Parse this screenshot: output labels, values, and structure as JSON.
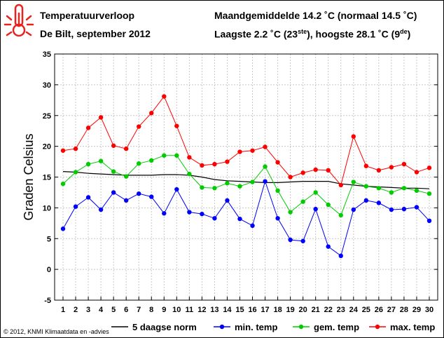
{
  "header": {
    "title": "Temperatuurverloop",
    "subtitle": "De Bilt, september 2012",
    "monthly_avg": "Maandgemiddelde 14.2 ˚C (normaal 14.5 ˚C)",
    "minmax_main": "Laagste 2.2 ˚C (23",
    "min_sup": "ste",
    "minmax_mid": "), hoogste 28.1 ˚C (9",
    "max_sup": "de",
    "minmax_end": ")"
  },
  "footer": {
    "copyright": "© 2012, KNMI Klimaatdata en -advies"
  },
  "icon": {
    "name": "thermometer-icon",
    "color": "#e8231e"
  },
  "chart_data": {
    "type": "line",
    "ylabel": "Graden Celsius",
    "xlabel": "",
    "ylim": [
      -5,
      35
    ],
    "yticks": [
      -5,
      0,
      5,
      10,
      15,
      20,
      25,
      30,
      35
    ],
    "x": [
      1,
      2,
      3,
      4,
      5,
      6,
      7,
      8,
      9,
      10,
      11,
      12,
      13,
      14,
      15,
      16,
      17,
      18,
      19,
      20,
      21,
      22,
      23,
      24,
      25,
      26,
      27,
      28,
      29,
      30
    ],
    "legend_position": "bottom",
    "grid": true,
    "series": [
      {
        "name": "5 daagse norm",
        "color": "#000000",
        "marker": false,
        "values": [
          15.9,
          15.8,
          15.6,
          15.5,
          15.4,
          15.3,
          15.3,
          15.3,
          15.4,
          15.4,
          15.3,
          15.0,
          14.6,
          14.4,
          14.3,
          14.2,
          14.1,
          14.1,
          14.2,
          14.3,
          14.3,
          14.3,
          13.9,
          13.7,
          13.5,
          13.4,
          13.3,
          13.2,
          13.2,
          13.1
        ]
      },
      {
        "name": "min. temp",
        "color": "#0000ff",
        "marker": true,
        "values": [
          6.6,
          10.2,
          11.7,
          9.7,
          12.5,
          11.2,
          12.3,
          11.8,
          9.1,
          13.0,
          9.3,
          9.0,
          8.3,
          11.2,
          8.2,
          7.1,
          14.3,
          8.3,
          4.8,
          4.6,
          9.8,
          3.7,
          2.2,
          9.7,
          11.2,
          10.8,
          9.7,
          9.8,
          10.1,
          7.9
        ]
      },
      {
        "name": "gem. temp",
        "color": "#00cc00",
        "marker": true,
        "values": [
          13.9,
          15.8,
          17.1,
          17.6,
          15.9,
          15.1,
          17.2,
          17.7,
          18.5,
          18.5,
          15.5,
          13.3,
          13.2,
          14.0,
          13.5,
          14.2,
          16.7,
          12.8,
          9.3,
          11.0,
          12.5,
          10.5,
          8.8,
          14.2,
          13.5,
          13.2,
          12.5,
          13.2,
          12.8,
          12.3
        ]
      },
      {
        "name": "max. temp",
        "color": "#ff0000",
        "marker": true,
        "values": [
          19.3,
          19.6,
          23.0,
          24.7,
          20.1,
          19.6,
          23.2,
          25.4,
          28.1,
          23.3,
          18.2,
          16.9,
          17.1,
          17.5,
          19.1,
          19.3,
          19.9,
          17.4,
          15.0,
          15.7,
          16.2,
          16.1,
          13.7,
          21.6,
          16.8,
          16.1,
          16.6,
          17.1,
          15.8,
          16.5
        ]
      }
    ]
  }
}
